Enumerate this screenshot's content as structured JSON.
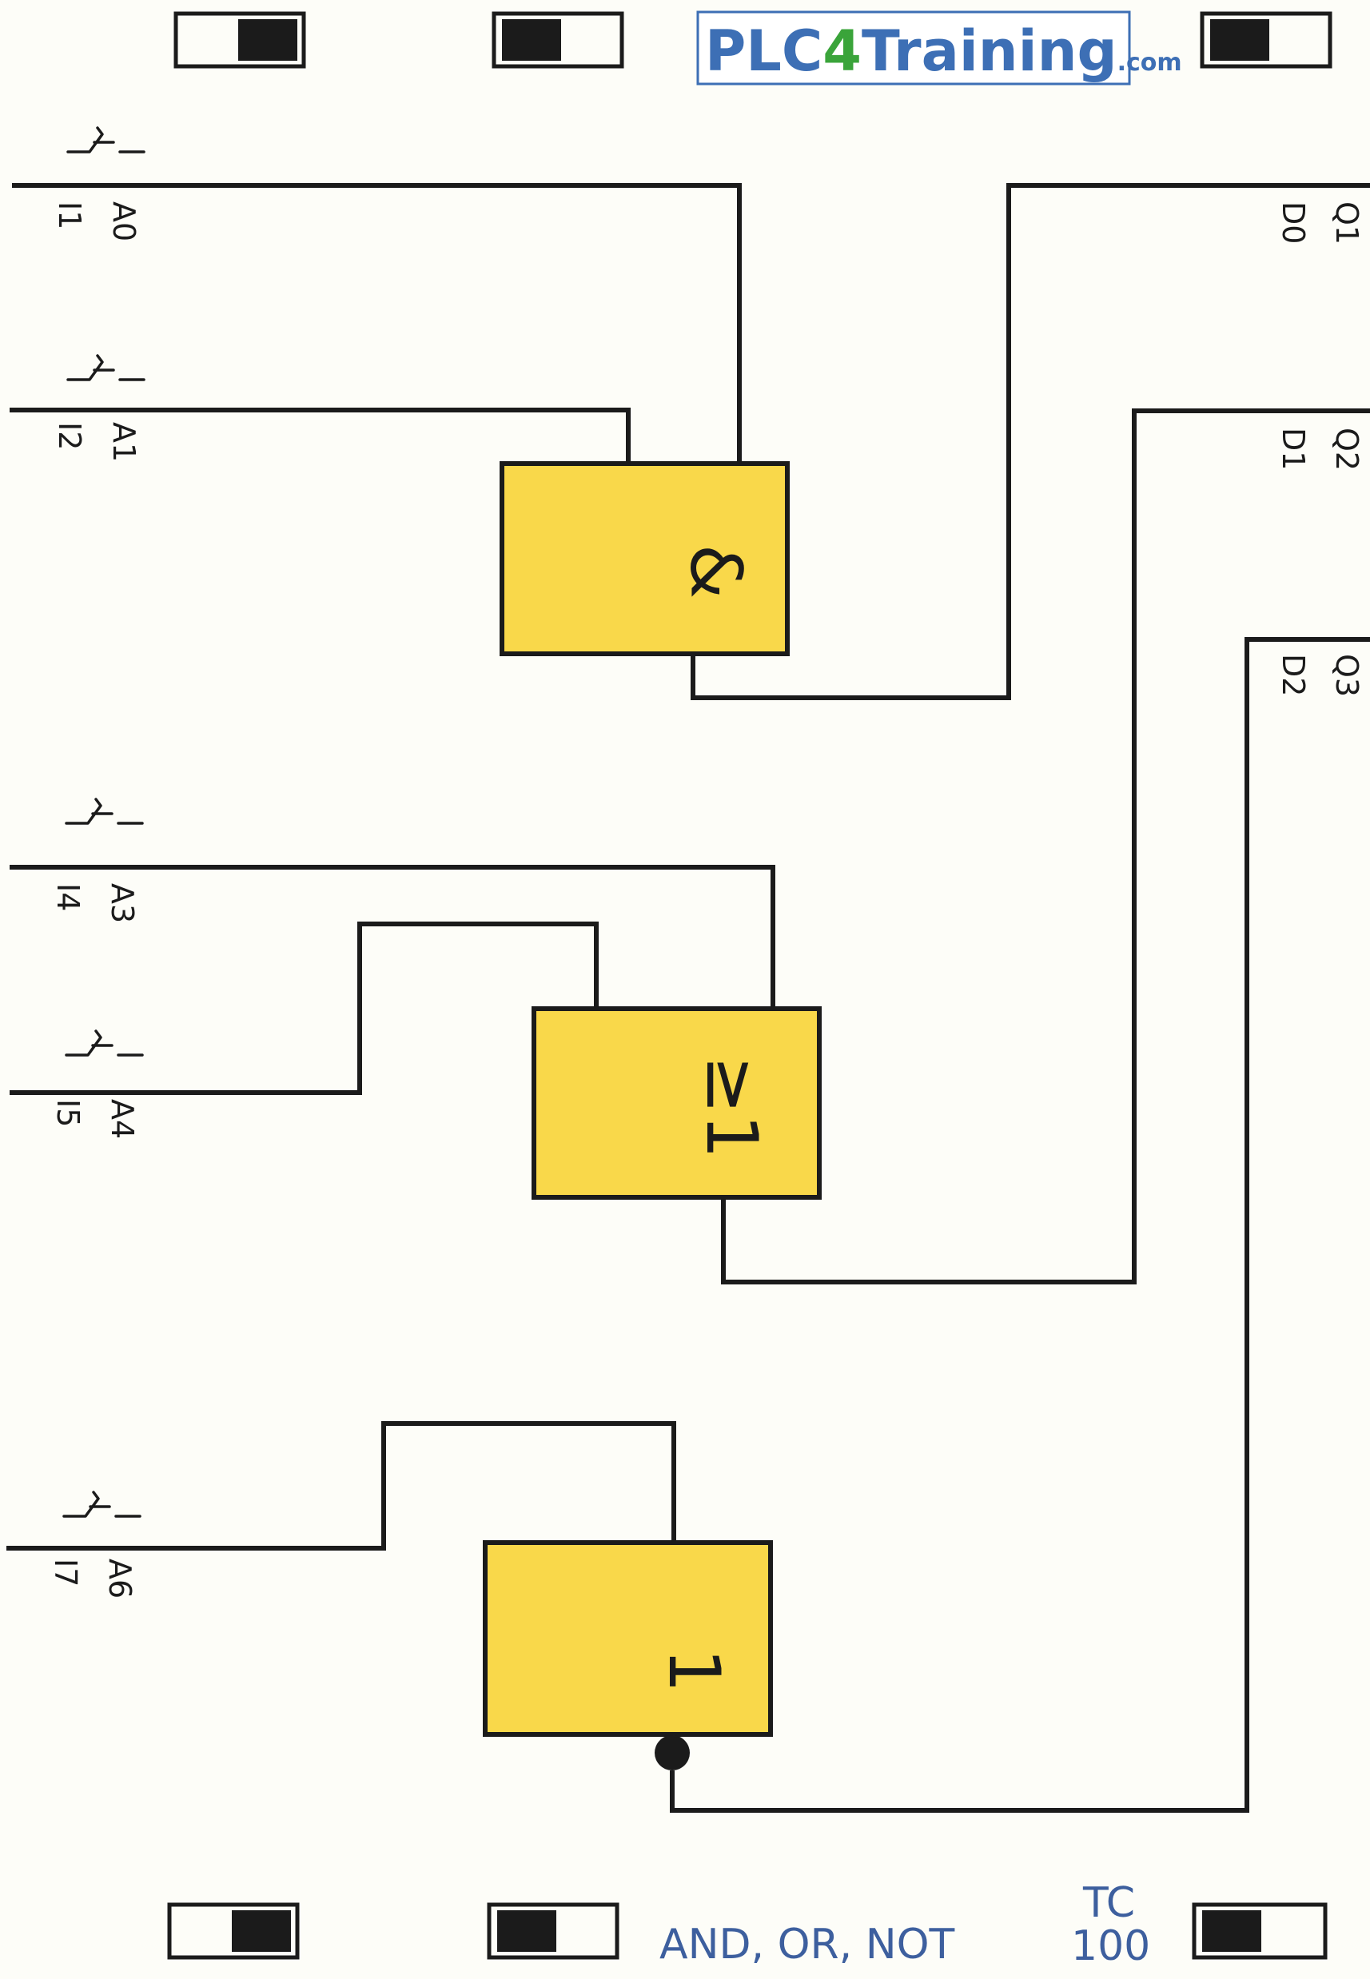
{
  "logo": {
    "part1": "PLC",
    "part2": "4",
    "part3": "Training",
    "part4": ".com"
  },
  "inputs": [
    {
      "terminal": "A0",
      "channel": "I1"
    },
    {
      "terminal": "A1",
      "channel": "I2"
    },
    {
      "terminal": "A3",
      "channel": "I4"
    },
    {
      "terminal": "A4",
      "channel": "I5"
    },
    {
      "terminal": "A6",
      "channel": "I7"
    }
  ],
  "outputs": [
    {
      "terminal": "Q1",
      "channel": "D0"
    },
    {
      "terminal": "Q2",
      "channel": "D1"
    },
    {
      "terminal": "Q3",
      "channel": "D2"
    }
  ],
  "gates": [
    {
      "type": "AND",
      "symbol": "&",
      "fill": "#f9d84a"
    },
    {
      "type": "OR",
      "symbol": "≥1",
      "fill": "#f9d84a"
    },
    {
      "type": "NOT",
      "symbol": "1",
      "fill": "#f9d84a",
      "inverted_output": true
    }
  ],
  "footer": {
    "title": "AND, OR, NOT",
    "code_line1": "TC",
    "code_line2": "100"
  },
  "colors": {
    "gate_fill": "#f9d84a",
    "wire": "#1b1b1b",
    "footer_text": "#3d5f9e",
    "logo_blue": "#3d6fb5",
    "logo_green": "#3aa43a"
  }
}
